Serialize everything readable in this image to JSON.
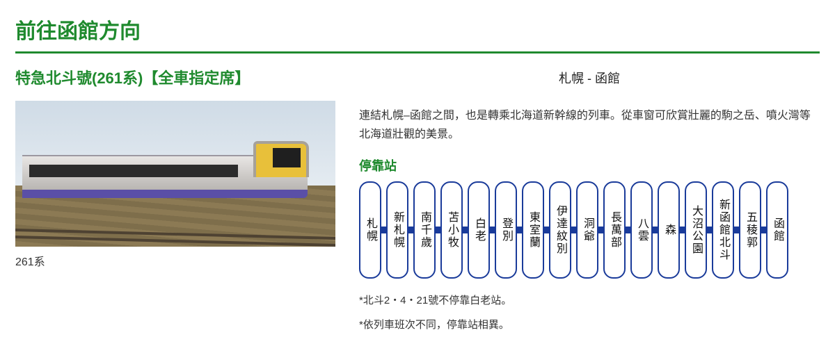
{
  "colors": {
    "accent_green": "#1f8a2e",
    "title_border": "#1f8a2e",
    "stop_border": "#1a3b9a",
    "connector": "#1a3b9a",
    "text": "#333333"
  },
  "section_title": "前往函館方向",
  "train_name": "特急北斗號(261系)【全車指定席】",
  "image_caption": "261系",
  "route": "札幌 - 函館",
  "description": "連結札幌–函館之間，也是轉乘北海道新幹線的列車。從車窗可欣賞壯麗的駒之岳、噴火灣等北海道壯觀的美景。",
  "stops_heading": "停靠站",
  "stops": [
    "札幌",
    "新札幌",
    "南千歲",
    "苫小牧",
    "白老",
    "登別",
    "東室蘭",
    "伊達紋別",
    "洞爺",
    "長萬部",
    "八雲",
    "森",
    "大沼公園",
    "新函館北斗",
    "五稜郭",
    "函館"
  ],
  "notes": [
    "*北斗2・4・21號不停靠白老站。",
    "*依列車班次不同，停靠站相異。"
  ]
}
